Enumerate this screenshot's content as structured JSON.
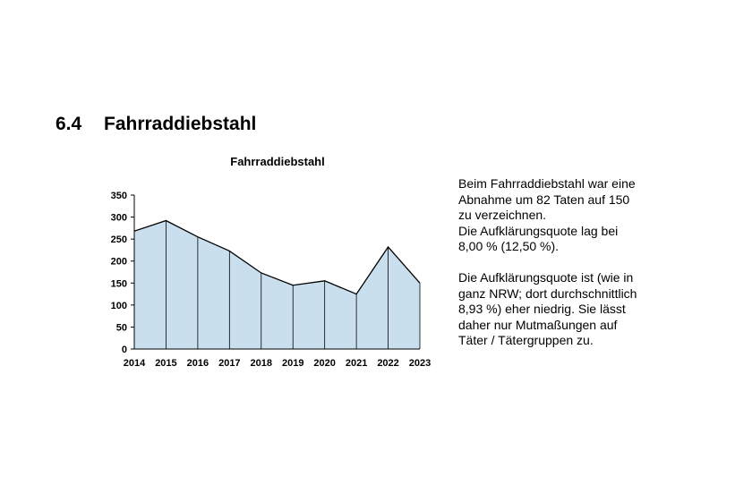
{
  "section": {
    "number": "6.4",
    "title": "Fahrraddiebstahl"
  },
  "chart_data": {
    "type": "area",
    "title": "Fahrraddiebstahl",
    "categories": [
      "2014",
      "2015",
      "2016",
      "2017",
      "2018",
      "2019",
      "2020",
      "2021",
      "2022",
      "2023"
    ],
    "values": [
      268,
      292,
      255,
      223,
      173,
      145,
      155,
      125,
      232,
      150
    ],
    "ylim": [
      0,
      350
    ],
    "yticks": [
      0,
      50,
      100,
      150,
      200,
      250,
      300,
      350
    ],
    "xlabel": "",
    "ylabel": "",
    "grid": false,
    "legend": "none",
    "fill_color": "#c9dfee",
    "line_color": "#000000"
  },
  "body": {
    "paragraph1": [
      "Beim Fahrraddiebstahl war eine",
      "Abnahme um 82 Taten auf 150",
      "zu verzeichnen.",
      "Die Aufklärungsquote lag bei",
      "8,00 % (12,50 %)."
    ],
    "paragraph2": [
      "Die Aufklärungsquote ist (wie in",
      "ganz NRW; dort durchschnittlich",
      "8,93 %) eher niedrig. Sie lässt",
      "daher nur Mutmaßungen auf",
      "Täter / Tätergruppen zu."
    ]
  }
}
